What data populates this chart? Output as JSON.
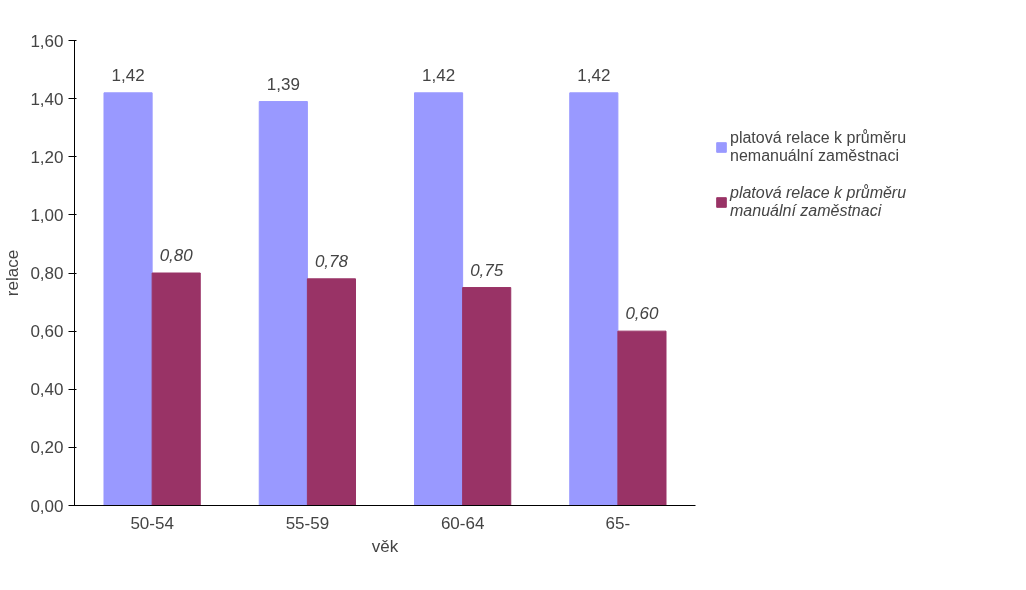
{
  "chart_data": {
    "type": "bar",
    "xlabel": "věk",
    "ylabel": "relace",
    "categories": [
      "50-54",
      "55-59",
      "60-64",
      "65-"
    ],
    "series": [
      {
        "name": "platová relace k průměru nemanuální zaměstnaci",
        "color": "#9999ff",
        "values": [
          1.42,
          1.39,
          1.42,
          1.42
        ],
        "value_labels": [
          "1,42",
          "1,39",
          "1,42",
          "1,42"
        ]
      },
      {
        "name": "platová relace k průměru manuální zaměstnaci",
        "color": "#993366",
        "values": [
          0.8,
          0.78,
          0.75,
          0.6
        ],
        "value_labels": [
          "0,80",
          "0,78",
          "0,75",
          "0,60"
        ]
      }
    ],
    "ylim": [
      0,
      1.6
    ],
    "yticks": [
      {
        "value": 0,
        "label": "0,00"
      },
      {
        "value": 0.2,
        "label": "0,20"
      },
      {
        "value": 0.4,
        "label": "0,40"
      },
      {
        "value": 0.6,
        "label": "0,60"
      },
      {
        "value": 0.8,
        "label": "0,80"
      },
      {
        "value": 1.0,
        "label": "1,00"
      },
      {
        "value": 1.2,
        "label": "1,20"
      },
      {
        "value": 1.4,
        "label": "1,40"
      },
      {
        "value": 1.6,
        "label": "1,60"
      }
    ],
    "grid": false,
    "legend": "right"
  }
}
